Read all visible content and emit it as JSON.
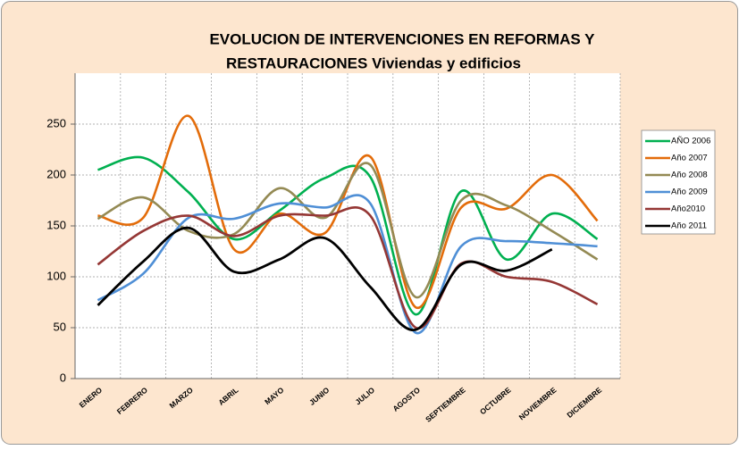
{
  "chart_data": {
    "type": "line",
    "title": [
      "EVOLUCION DE INTERVENCIONES EN REFORMAS Y",
      "RESTAURACIONES Viviendas y edificios"
    ],
    "categories": [
      "ENERO",
      "FEBRERO",
      "MARZO",
      "ABRIL",
      "MAYO",
      "JUNIO",
      "JULIO",
      "AGOSTO",
      "SEPTIEMBRE",
      "OCTUBRE",
      "NOVIEMBRE",
      "DICIEMBRE"
    ],
    "series": [
      {
        "name": "AÑO 2006",
        "color": "#00b050",
        "values": [
          205,
          217,
          183,
          137,
          165,
          197,
          198,
          63,
          184,
          117,
          162,
          137
        ]
      },
      {
        "name": "Año 2007",
        "color": "#e36c0a",
        "values": [
          160,
          158,
          258,
          127,
          162,
          143,
          218,
          70,
          168,
          167,
          200,
          155
        ]
      },
      {
        "name": "Año 2008",
        "color": "#948a54",
        "values": [
          157,
          178,
          145,
          142,
          187,
          158,
          210,
          80,
          175,
          170,
          145,
          117
        ]
      },
      {
        "name": "Año 2009",
        "color": "#4f8fd6",
        "values": [
          77,
          103,
          158,
          157,
          172,
          168,
          172,
          45,
          130,
          135,
          133,
          130
        ]
      },
      {
        "name": "Año2010",
        "color": "#953735",
        "values": [
          112,
          145,
          160,
          140,
          160,
          160,
          160,
          50,
          113,
          100,
          95,
          73
        ]
      },
      {
        "name": "Año 2011",
        "color": "#000000",
        "values": [
          72,
          115,
          148,
          105,
          117,
          138,
          90,
          48,
          112,
          106,
          127,
          null
        ]
      }
    ],
    "ylim": [
      0,
      300
    ],
    "yticks": [
      0,
      50,
      100,
      150,
      200,
      250
    ],
    "grid": true,
    "legend": "right"
  }
}
